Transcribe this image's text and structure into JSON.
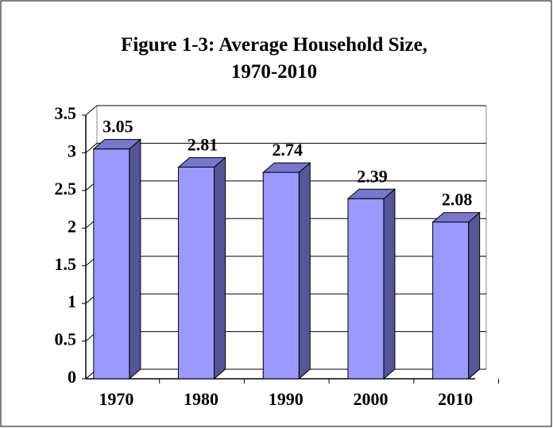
{
  "chart_data": {
    "type": "bar",
    "title": "Figure 1-3: Average Household Size, 1970-2010",
    "categories": [
      "1970",
      "1980",
      "1990",
      "2000",
      "2010"
    ],
    "values": [
      3.05,
      2.81,
      2.74,
      2.39,
      2.08
    ],
    "color": "#9999ff",
    "ylim": [
      0,
      3.5
    ],
    "yticks": [
      0,
      0.5,
      1,
      1.5,
      2,
      2.5,
      3,
      3.5
    ],
    "grid": true
  }
}
